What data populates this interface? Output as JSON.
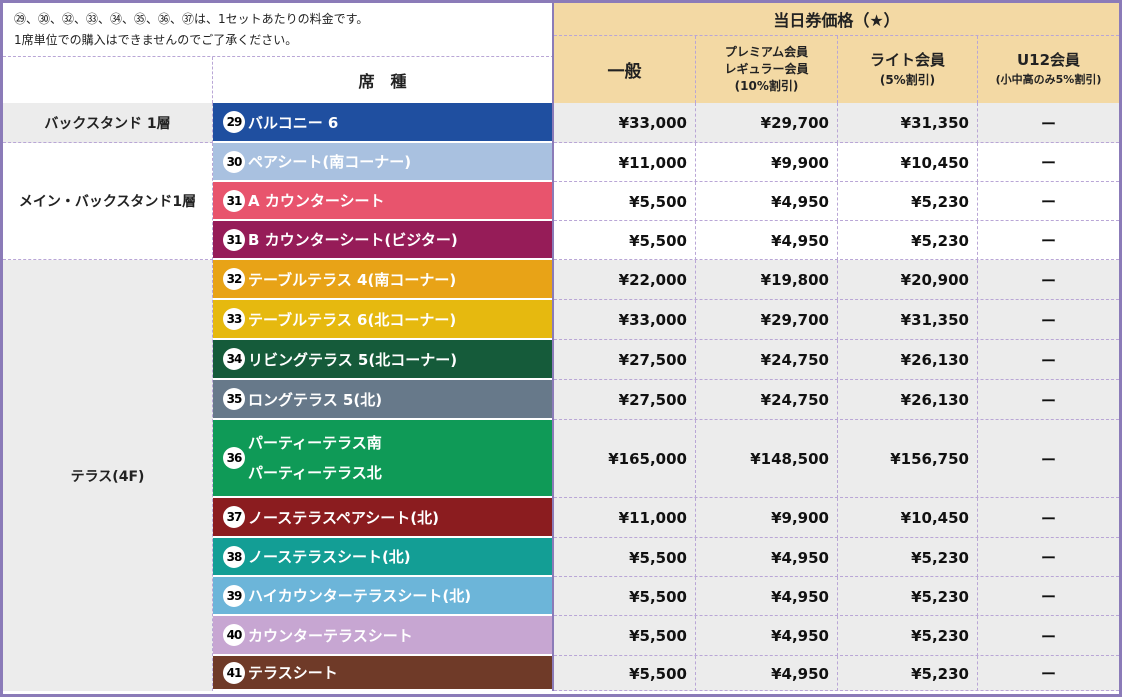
{
  "notes": [
    "㉙、㉚、㉜、㉝、㉞、㉟、㊱、㊲は、1セットあたりの料金です。",
    "1席単位での購入はできませんのでご了承ください。"
  ],
  "header": {
    "same_day": "当日券価格（★）",
    "seat_type": "席　種",
    "general": "一般",
    "premium_l1": "プレミアム会員",
    "premium_l2": "レギュラー会員",
    "premium_l3": "(10%割引)",
    "lite_l1": "ライト会員",
    "lite_l2": "(5%割引)",
    "u12_l1": "U12会員",
    "u12_l2": "(小中高のみ5%割引)"
  },
  "categories": [
    {
      "label": "バックスタンド 1層"
    },
    {
      "label": "メイン・バックスタンド1層"
    },
    {
      "label": "テラス(4F)"
    }
  ],
  "rows": [
    {
      "num": "29",
      "name": "バルコニー 6",
      "color": "#1f4fa0",
      "general": "¥33,000",
      "premium": "¥29,700",
      "lite": "¥31,350",
      "u12": "ー"
    },
    {
      "num": "30",
      "name": "ペアシート(南コーナー)",
      "color": "#a9c1e0",
      "general": "¥11,000",
      "premium": "¥9,900",
      "lite": "¥10,450",
      "u12": "ー"
    },
    {
      "num": "31",
      "name": "A カウンターシート",
      "color": "#e8546d",
      "general": "¥5,500",
      "premium": "¥4,950",
      "lite": "¥5,230",
      "u12": "ー"
    },
    {
      "num": "31",
      "name": "B カウンターシート(ビジター)",
      "color": "#961c58",
      "general": "¥5,500",
      "premium": "¥4,950",
      "lite": "¥5,230",
      "u12": "ー"
    },
    {
      "num": "32",
      "name": "テーブルテラス 4(南コーナー)",
      "color": "#e8a317",
      "general": "¥22,000",
      "premium": "¥19,800",
      "lite": "¥20,900",
      "u12": "ー"
    },
    {
      "num": "33",
      "name": "テーブルテラス 6(北コーナー)",
      "color": "#e6b90f",
      "general": "¥33,000",
      "premium": "¥29,700",
      "lite": "¥31,350",
      "u12": "ー"
    },
    {
      "num": "34",
      "name": "リビングテラス 5(北コーナー)",
      "color": "#155b3a",
      "general": "¥27,500",
      "premium": "¥24,750",
      "lite": "¥26,130",
      "u12": "ー"
    },
    {
      "num": "35",
      "name": "ロングテラス 5(北)",
      "color": "#67798a",
      "general": "¥27,500",
      "premium": "¥24,750",
      "lite": "¥26,130",
      "u12": "ー"
    },
    {
      "num": "36",
      "name": "パーティーテラス南",
      "name2": "パーティーテラス北",
      "color": "#0f9a57",
      "general": "¥165,000",
      "premium": "¥148,500",
      "lite": "¥156,750",
      "u12": "ー"
    },
    {
      "num": "37",
      "name": "ノーステラスペアシート(北)",
      "color": "#8b1c1f",
      "general": "¥11,000",
      "premium": "¥9,900",
      "lite": "¥10,450",
      "u12": "ー"
    },
    {
      "num": "38",
      "name": "ノーステラスシート(北)",
      "color": "#139e95",
      "general": "¥5,500",
      "premium": "¥4,950",
      "lite": "¥5,230",
      "u12": "ー"
    },
    {
      "num": "39",
      "name": "ハイカウンターテラスシート(北)",
      "color": "#6cb5d9",
      "general": "¥5,500",
      "premium": "¥4,950",
      "lite": "¥5,230",
      "u12": "ー"
    },
    {
      "num": "40",
      "name": "カウンターテラスシート",
      "color": "#c7a6d2",
      "general": "¥5,500",
      "premium": "¥4,950",
      "lite": "¥5,230",
      "u12": "ー"
    },
    {
      "num": "41",
      "name": "テラスシート",
      "color": "#6f3a28",
      "general": "¥5,500",
      "premium": "¥4,950",
      "lite": "¥5,230",
      "u12": "ー"
    }
  ]
}
